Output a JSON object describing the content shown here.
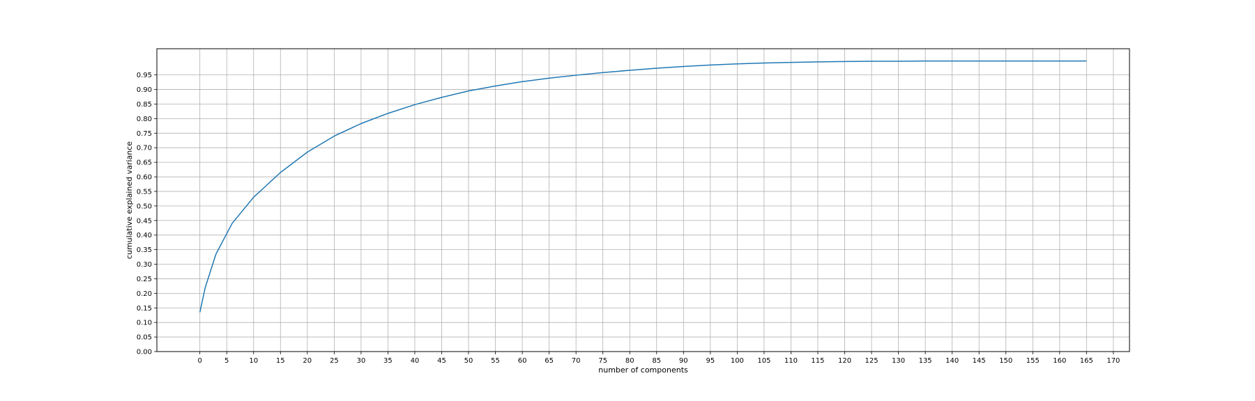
{
  "chart_data": {
    "type": "line",
    "title": "",
    "xlabel": "number of components",
    "ylabel": "cumulative explained variance",
    "xlim": [
      -8,
      173
    ],
    "ylim": [
      0,
      1.04
    ],
    "grid": true,
    "xticks": [
      0,
      5,
      10,
      15,
      20,
      25,
      30,
      35,
      40,
      45,
      50,
      55,
      60,
      65,
      70,
      75,
      80,
      85,
      90,
      95,
      100,
      105,
      110,
      115,
      120,
      125,
      130,
      135,
      140,
      145,
      150,
      155,
      160,
      165,
      170
    ],
    "yticks": [
      "0.00",
      "0.05",
      "0.10",
      "0.15",
      "0.20",
      "0.25",
      "0.30",
      "0.35",
      "0.40",
      "0.45",
      "0.50",
      "0.55",
      "0.60",
      "0.65",
      "0.70",
      "0.75",
      "0.80",
      "0.85",
      "0.90",
      "0.95"
    ],
    "series": [
      {
        "color": "#1f77b4",
        "x": [
          0,
          1,
          3,
          6,
          10,
          15,
          20,
          25,
          30,
          35,
          40,
          45,
          50,
          55,
          60,
          65,
          70,
          75,
          80,
          85,
          90,
          95,
          100,
          105,
          110,
          115,
          120,
          125,
          130,
          135,
          140,
          145,
          150,
          155,
          160,
          165
        ],
        "y": [
          0.135,
          0.22,
          0.335,
          0.44,
          0.53,
          0.615,
          0.685,
          0.74,
          0.783,
          0.818,
          0.848,
          0.873,
          0.895,
          0.912,
          0.927,
          0.939,
          0.949,
          0.958,
          0.966,
          0.973,
          0.979,
          0.984,
          0.988,
          0.991,
          0.993,
          0.995,
          0.996,
          0.997,
          0.997,
          0.998,
          0.998,
          0.998,
          0.998,
          0.998,
          0.998,
          0.998
        ]
      }
    ]
  }
}
